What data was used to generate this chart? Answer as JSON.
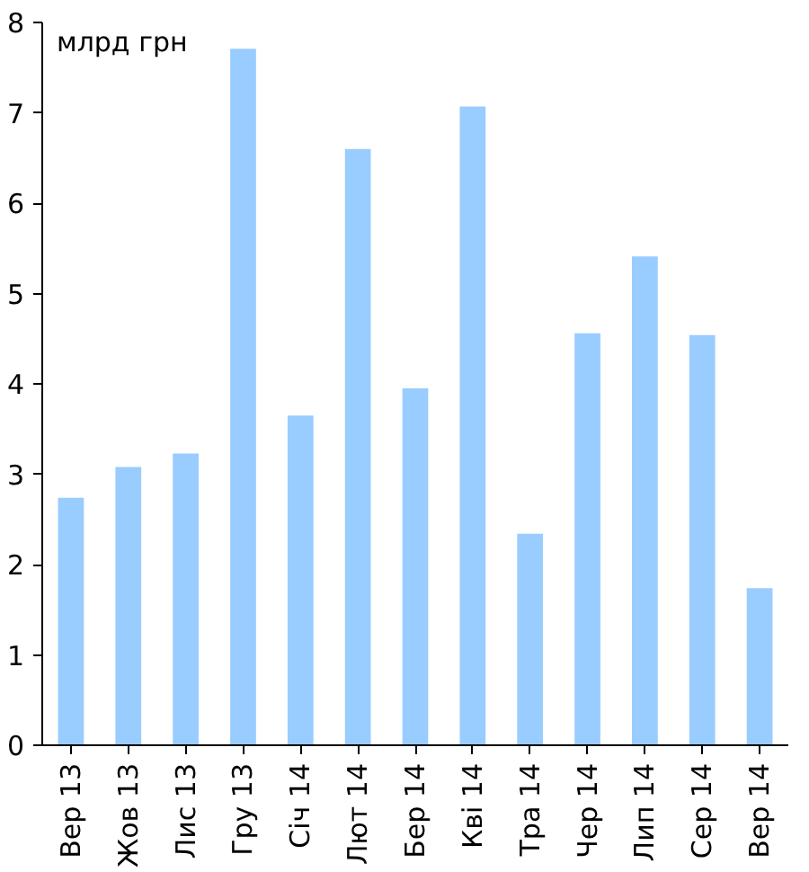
{
  "chart_data": {
    "type": "bar",
    "ylabel": "млрд грн",
    "categories": [
      "Вер 13",
      "Жов 13",
      "Лис 13",
      "Гру 13",
      "Січ 14",
      "Лют 14",
      "Бер 14",
      "Кві 14",
      "Тра 14",
      "Чер 14",
      "Лип 14",
      "Сер 14",
      "Вер 14"
    ],
    "values": [
      2.74,
      3.08,
      3.23,
      7.71,
      3.65,
      6.6,
      3.95,
      7.07,
      2.34,
      4.56,
      5.41,
      4.54,
      1.74
    ],
    "color": "#99ccff",
    "ylim": [
      0,
      8
    ],
    "yticks": [
      0,
      1,
      2,
      3,
      4,
      5,
      6,
      7,
      8
    ],
    "grid": false
  }
}
